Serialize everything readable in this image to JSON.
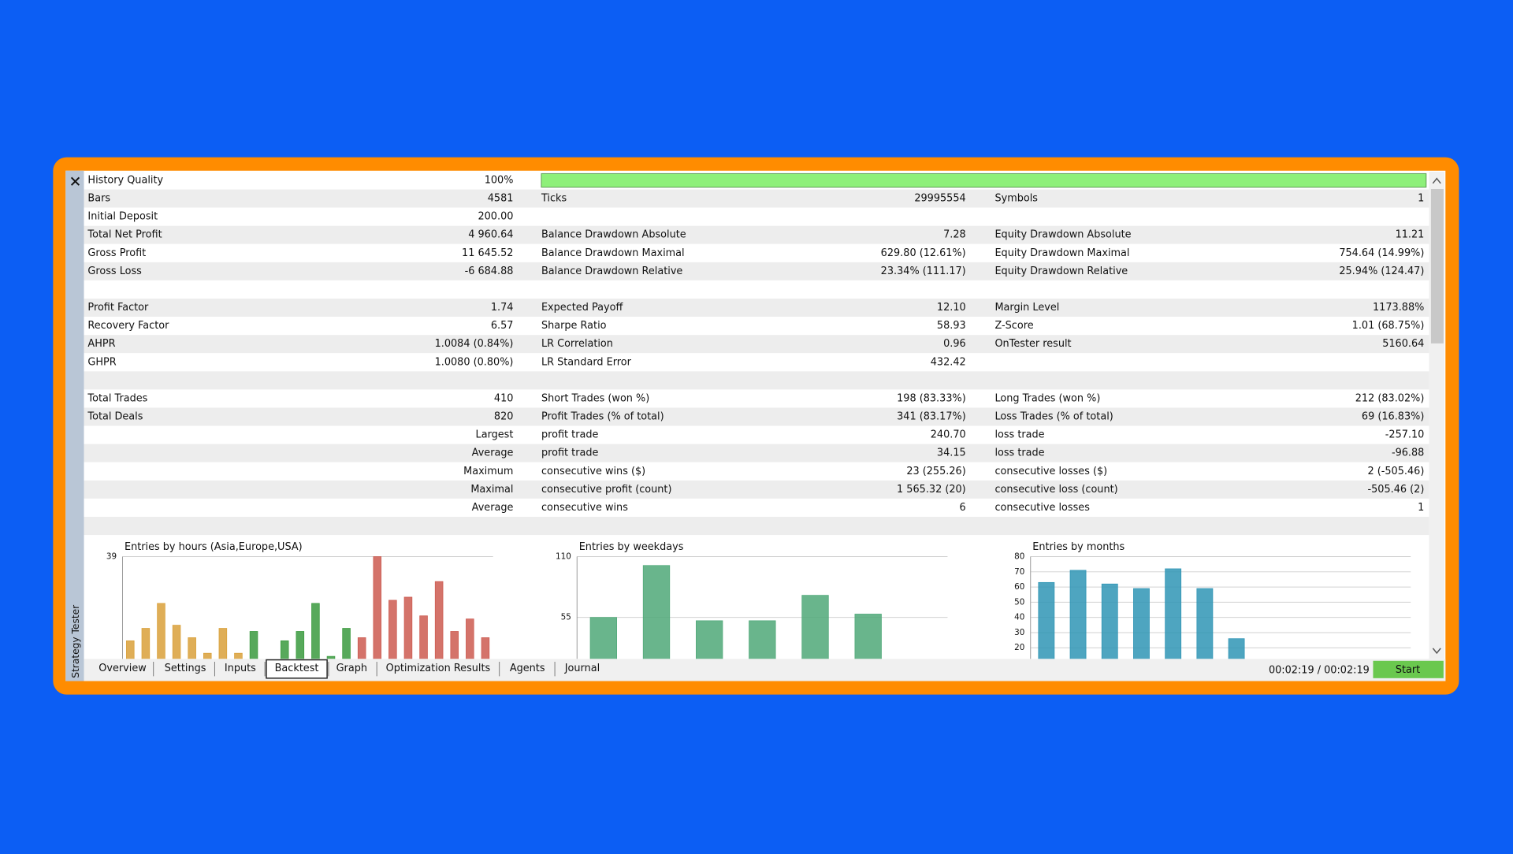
{
  "side_title": "Strategy Tester",
  "history_quality": {
    "label": "History Quality",
    "value": "100%"
  },
  "report": {
    "sections": [
      [
        [
          "Bars",
          "4581",
          "Ticks",
          "29995554",
          "Symbols",
          "1"
        ],
        [
          "Initial Deposit",
          "200.00",
          null,
          null,
          null,
          null
        ],
        [
          "Total Net Profit",
          "4 960.64",
          "Balance Drawdown Absolute",
          "7.28",
          "Equity Drawdown Absolute",
          "11.21"
        ],
        [
          "Gross Profit",
          "11 645.52",
          "Balance Drawdown Maximal",
          "629.80 (12.61%)",
          "Equity Drawdown Maximal",
          "754.64 (14.99%)"
        ],
        [
          "Gross Loss",
          "-6 684.88",
          "Balance Drawdown Relative",
          "23.34% (111.17)",
          "Equity Drawdown Relative",
          "25.94% (124.47)"
        ]
      ],
      [
        [
          "Profit Factor",
          "1.74",
          "Expected Payoff",
          "12.10",
          "Margin Level",
          "1173.88%"
        ],
        [
          "Recovery Factor",
          "6.57",
          "Sharpe Ratio",
          "58.93",
          "Z-Score",
          "1.01 (68.75%)"
        ],
        [
          "AHPR",
          "1.0084 (0.84%)",
          "LR Correlation",
          "0.96",
          "OnTester result",
          "5160.64"
        ],
        [
          "GHPR",
          "1.0080 (0.80%)",
          "LR Standard Error",
          "432.42",
          null,
          null
        ]
      ],
      [
        [
          "Total Trades",
          "410",
          "Short Trades (won %)",
          "198 (83.33%)",
          "Long Trades (won %)",
          "212 (83.02%)"
        ],
        [
          "Total Deals",
          "820",
          "Profit Trades (% of total)",
          "341 (83.17%)",
          "Loss Trades (% of total)",
          "69 (16.83%)"
        ],
        [
          null,
          "Largest",
          "profit trade",
          "240.70",
          "loss trade",
          "-257.10"
        ],
        [
          null,
          "Average",
          "profit trade",
          "34.15",
          "loss trade",
          "-96.88"
        ],
        [
          null,
          "Maximum",
          "consecutive wins ($)",
          "23 (255.26)",
          "consecutive losses ($)",
          "2 (-505.46)"
        ],
        [
          null,
          "Maximal",
          "consecutive profit (count)",
          "1 565.32 (20)",
          "consecutive loss (count)",
          "-505.46 (2)"
        ],
        [
          null,
          "Average",
          "consecutive wins",
          "6",
          "consecutive losses",
          "1"
        ]
      ]
    ]
  },
  "chart_data": [
    {
      "type": "bar",
      "title": "Entries by hours (Asia,Europe,USA)",
      "values": [
        12,
        16,
        24,
        17,
        13,
        8,
        16,
        8,
        15,
        0,
        12,
        15,
        24,
        7,
        16,
        13,
        39,
        25,
        26,
        20,
        31,
        15,
        19,
        13
      ],
      "colors": [
        "#d9a03a",
        "#d9a03a",
        "#d9a03a",
        "#d9a03a",
        "#d9a03a",
        "#d9a03a",
        "#d9a03a",
        "#d9a03a",
        "#3a9a3e",
        "#3a9a3e",
        "#3a9a3e",
        "#3a9a3e",
        "#3a9a3e",
        "#3a9a3e",
        "#3a9a3e",
        "#cc5a50",
        "#cc5a50",
        "#cc5a50",
        "#cc5a50",
        "#cc5a50",
        "#cc5a50",
        "#cc5a50",
        "#cc5a50",
        "#cc5a50"
      ],
      "ylim": [
        0,
        39
      ],
      "yticks": [
        39
      ],
      "grid": true
    },
    {
      "type": "bar",
      "title": "Entries by weekdays",
      "values": [
        55,
        102,
        52,
        52,
        75,
        58,
        0
      ],
      "color": "#4fa878",
      "ylim": [
        0,
        110
      ],
      "yticks": [
        55,
        110
      ],
      "grid": true
    },
    {
      "type": "bar",
      "title": "Entries by months",
      "values": [
        63,
        71,
        62,
        59,
        72,
        59,
        26,
        0,
        0,
        0,
        0,
        0
      ],
      "color": "#2f95b5",
      "ylim": [
        0,
        80
      ],
      "yticks": [
        20,
        30,
        40,
        50,
        60,
        70,
        80
      ],
      "grid": true
    }
  ],
  "tabs": [
    "Overview",
    "Settings",
    "Inputs",
    "Backtest",
    "Graph",
    "Optimization Results",
    "Agents",
    "Journal"
  ],
  "active_tab": 3,
  "timer": "00:02:19 / 00:02:19",
  "start_button": "Start"
}
